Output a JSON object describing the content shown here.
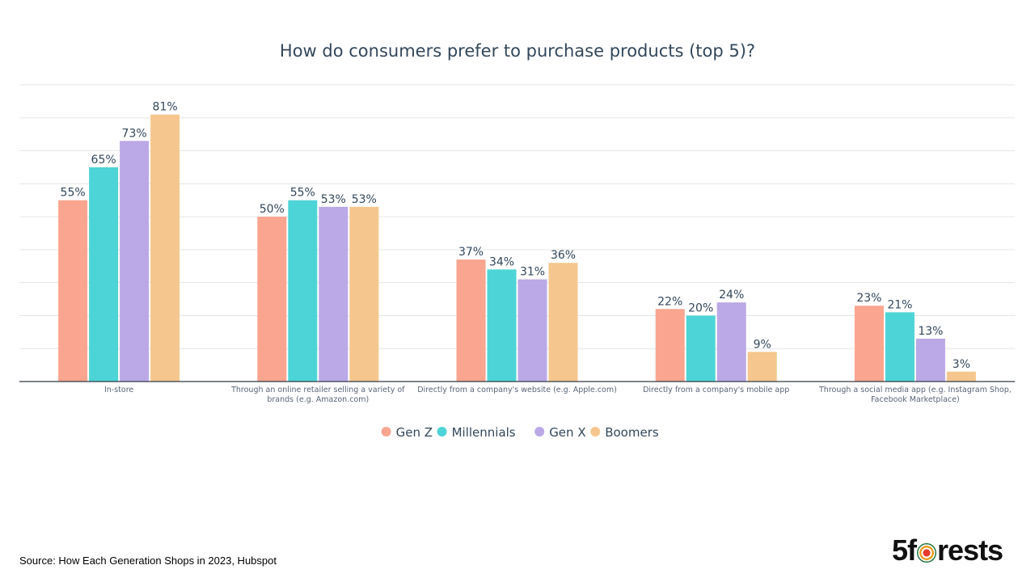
{
  "chart_data": {
    "type": "bar",
    "title": "How do consumers prefer to purchase products (top 5)?",
    "categories": [
      [
        "In-store"
      ],
      [
        "Through an online retailer selling a variety of",
        "brands (e.g. Amazon.com)"
      ],
      [
        "Directly from a company's website (e.g. Apple.com)"
      ],
      [
        "Directly from a company's mobile app"
      ],
      [
        "Through a social media app (e.g. Instagram Shop,",
        "Facebook Marketplace)"
      ]
    ],
    "series": [
      {
        "name": "Gen Z",
        "color": "#f9a58f",
        "values": [
          55,
          50,
          37,
          22,
          23
        ]
      },
      {
        "name": "Millennials",
        "color": "#4dd4d6",
        "values": [
          65,
          55,
          34,
          20,
          21
        ]
      },
      {
        "name": "Gen X",
        "color": "#bba8e6",
        "values": [
          73,
          53,
          31,
          24,
          13
        ]
      },
      {
        "name": "Boomers",
        "color": "#f5c78e",
        "values": [
          81,
          53,
          36,
          9,
          3
        ]
      }
    ],
    "value_suffix": "%",
    "ylim": [
      0,
      90
    ],
    "grid": true,
    "legend": "bottom"
  },
  "footer": {
    "source": "Source: How Each Generation Shops in 2023, Hubspot",
    "logo_pre": "5f",
    "logo_post": "rests"
  }
}
